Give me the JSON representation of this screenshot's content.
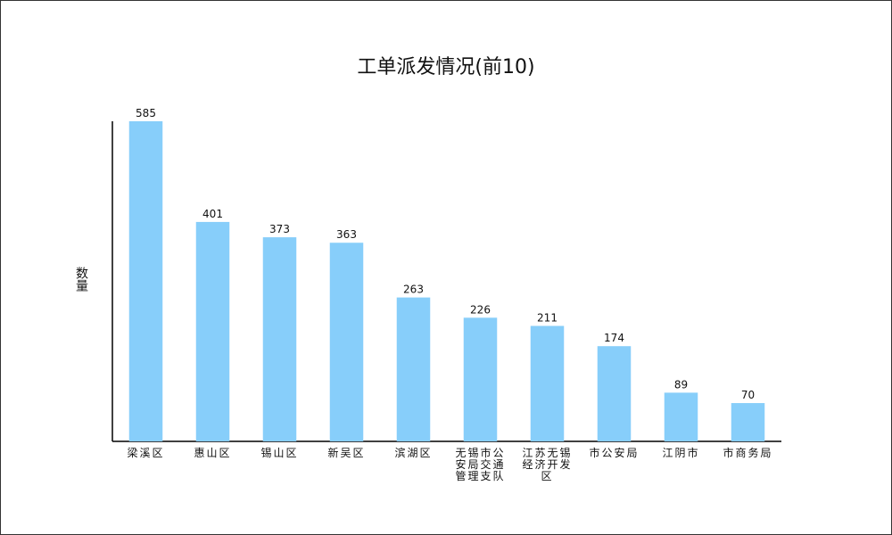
{
  "chart_data": {
    "type": "bar",
    "title": "工单派发情况(前10)",
    "y_label": "数量",
    "categories": [
      "梁溪区",
      "惠山区",
      "锡山区",
      "新吴区",
      "滨湖区",
      "无锡市公安局交通管理支队",
      "江苏无锡经济开发区",
      "市公安局",
      "江阴市",
      "市商务局"
    ],
    "values": [
      585,
      401,
      373,
      363,
      263,
      226,
      211,
      174,
      89,
      70
    ],
    "color": "#87cefa",
    "ylim": [
      0,
      585
    ],
    "grid": false
  }
}
